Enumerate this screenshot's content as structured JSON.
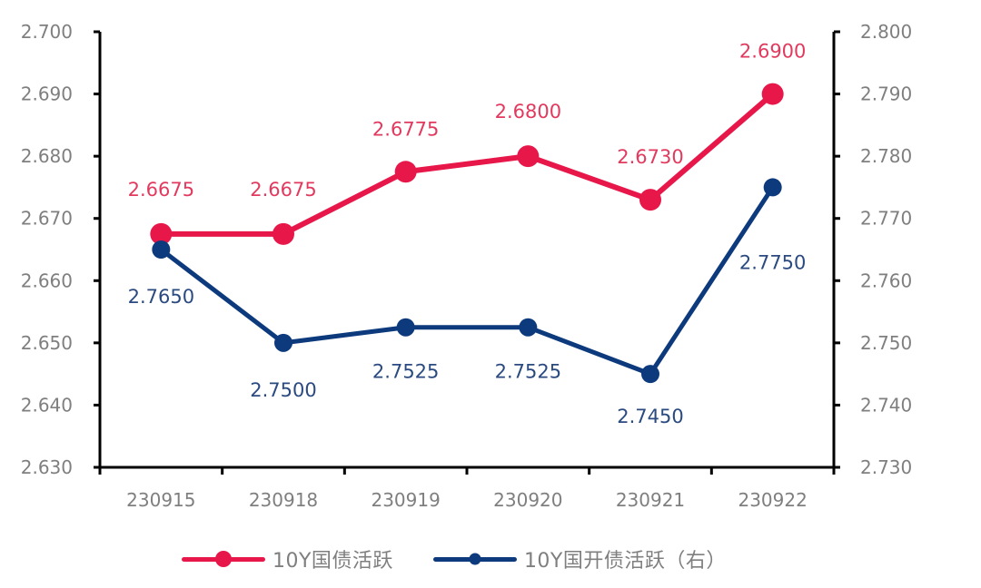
{
  "chart_data": {
    "type": "line",
    "title": "",
    "categories": [
      "230915",
      "230918",
      "230919",
      "230920",
      "230921",
      "230922"
    ],
    "series": [
      {
        "name": "10Y国债活跃",
        "axis": "left",
        "color": "#e8174a",
        "values": [
          2.6675,
          2.6675,
          2.6775,
          2.68,
          2.673,
          2.69
        ],
        "labels": [
          "2.6675",
          "2.6675",
          "2.6775",
          "2.6800",
          "2.6730",
          "2.6900"
        ]
      },
      {
        "name": "10Y国开债活跃（右）",
        "axis": "right",
        "color": "#0d3a7d",
        "values": [
          2.765,
          2.75,
          2.7525,
          2.7525,
          2.745,
          2.775
        ],
        "labels": [
          "2.7650",
          "2.7500",
          "2.7525",
          "2.7525",
          "2.7450",
          "2.7750"
        ]
      }
    ],
    "left_axis": {
      "ylim": [
        2.63,
        2.7
      ],
      "ticks": [
        "2.700",
        "2.690",
        "2.680",
        "2.670",
        "2.660",
        "2.650",
        "2.640",
        "2.630"
      ]
    },
    "right_axis": {
      "ylim": [
        2.73,
        2.8
      ],
      "ticks": [
        "2.800",
        "2.790",
        "2.780",
        "2.770",
        "2.760",
        "2.750",
        "2.740",
        "2.730"
      ]
    },
    "xlabel": "",
    "ylabel": "",
    "grid": false,
    "legend_position": "bottom"
  },
  "legend": {
    "items": [
      {
        "label": "10Y国债活跃",
        "color": "#e8174a"
      },
      {
        "label": "10Y国开债活跃（右）",
        "color": "#0d3a7d"
      }
    ]
  }
}
